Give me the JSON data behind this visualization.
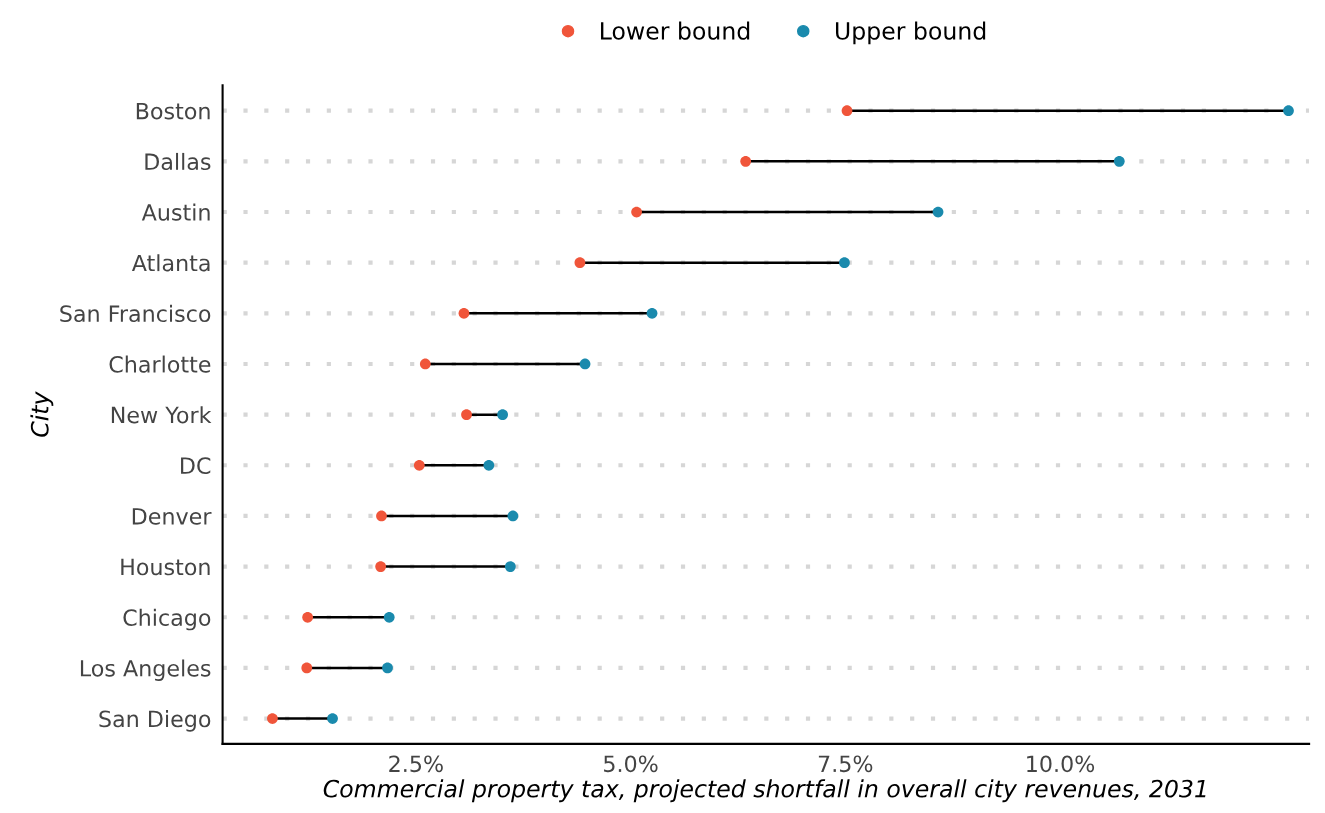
{
  "chart_data": {
    "type": "scatter",
    "orientation": "horizontal",
    "xlabel": "Commercial property tax, projected shortfall in overall city revenues, 2031",
    "ylabel": "City",
    "categories": [
      "Boston",
      "Dallas",
      "Austin",
      "Atlanta",
      "San Francisco",
      "Charlotte",
      "New York",
      "DC",
      "Denver",
      "Houston",
      "Chicago",
      "Los Angeles",
      "San Diego"
    ],
    "series": [
      {
        "name": "Lower bound",
        "color": "#f0553a",
        "values": [
          7.52,
          6.34,
          5.07,
          4.41,
          3.06,
          2.61,
          3.09,
          2.54,
          2.1,
          2.09,
          1.24,
          1.23,
          0.83
        ]
      },
      {
        "name": "Upper bound",
        "color": "#1a8aad",
        "values": [
          12.66,
          10.69,
          8.58,
          7.49,
          5.25,
          4.47,
          3.51,
          3.35,
          3.63,
          3.6,
          2.19,
          2.17,
          1.53
        ]
      }
    ],
    "xlim": [
      0.25,
      12.9
    ],
    "xticks": [
      {
        "value": 2.5,
        "label": "2.5%"
      },
      {
        "value": 5.0,
        "label": "5.0%"
      },
      {
        "value": 7.5,
        "label": "7.5%"
      },
      {
        "value": 10.0,
        "label": "10.0%"
      }
    ],
    "grid": "y",
    "legend": "top",
    "marker": "circle"
  }
}
